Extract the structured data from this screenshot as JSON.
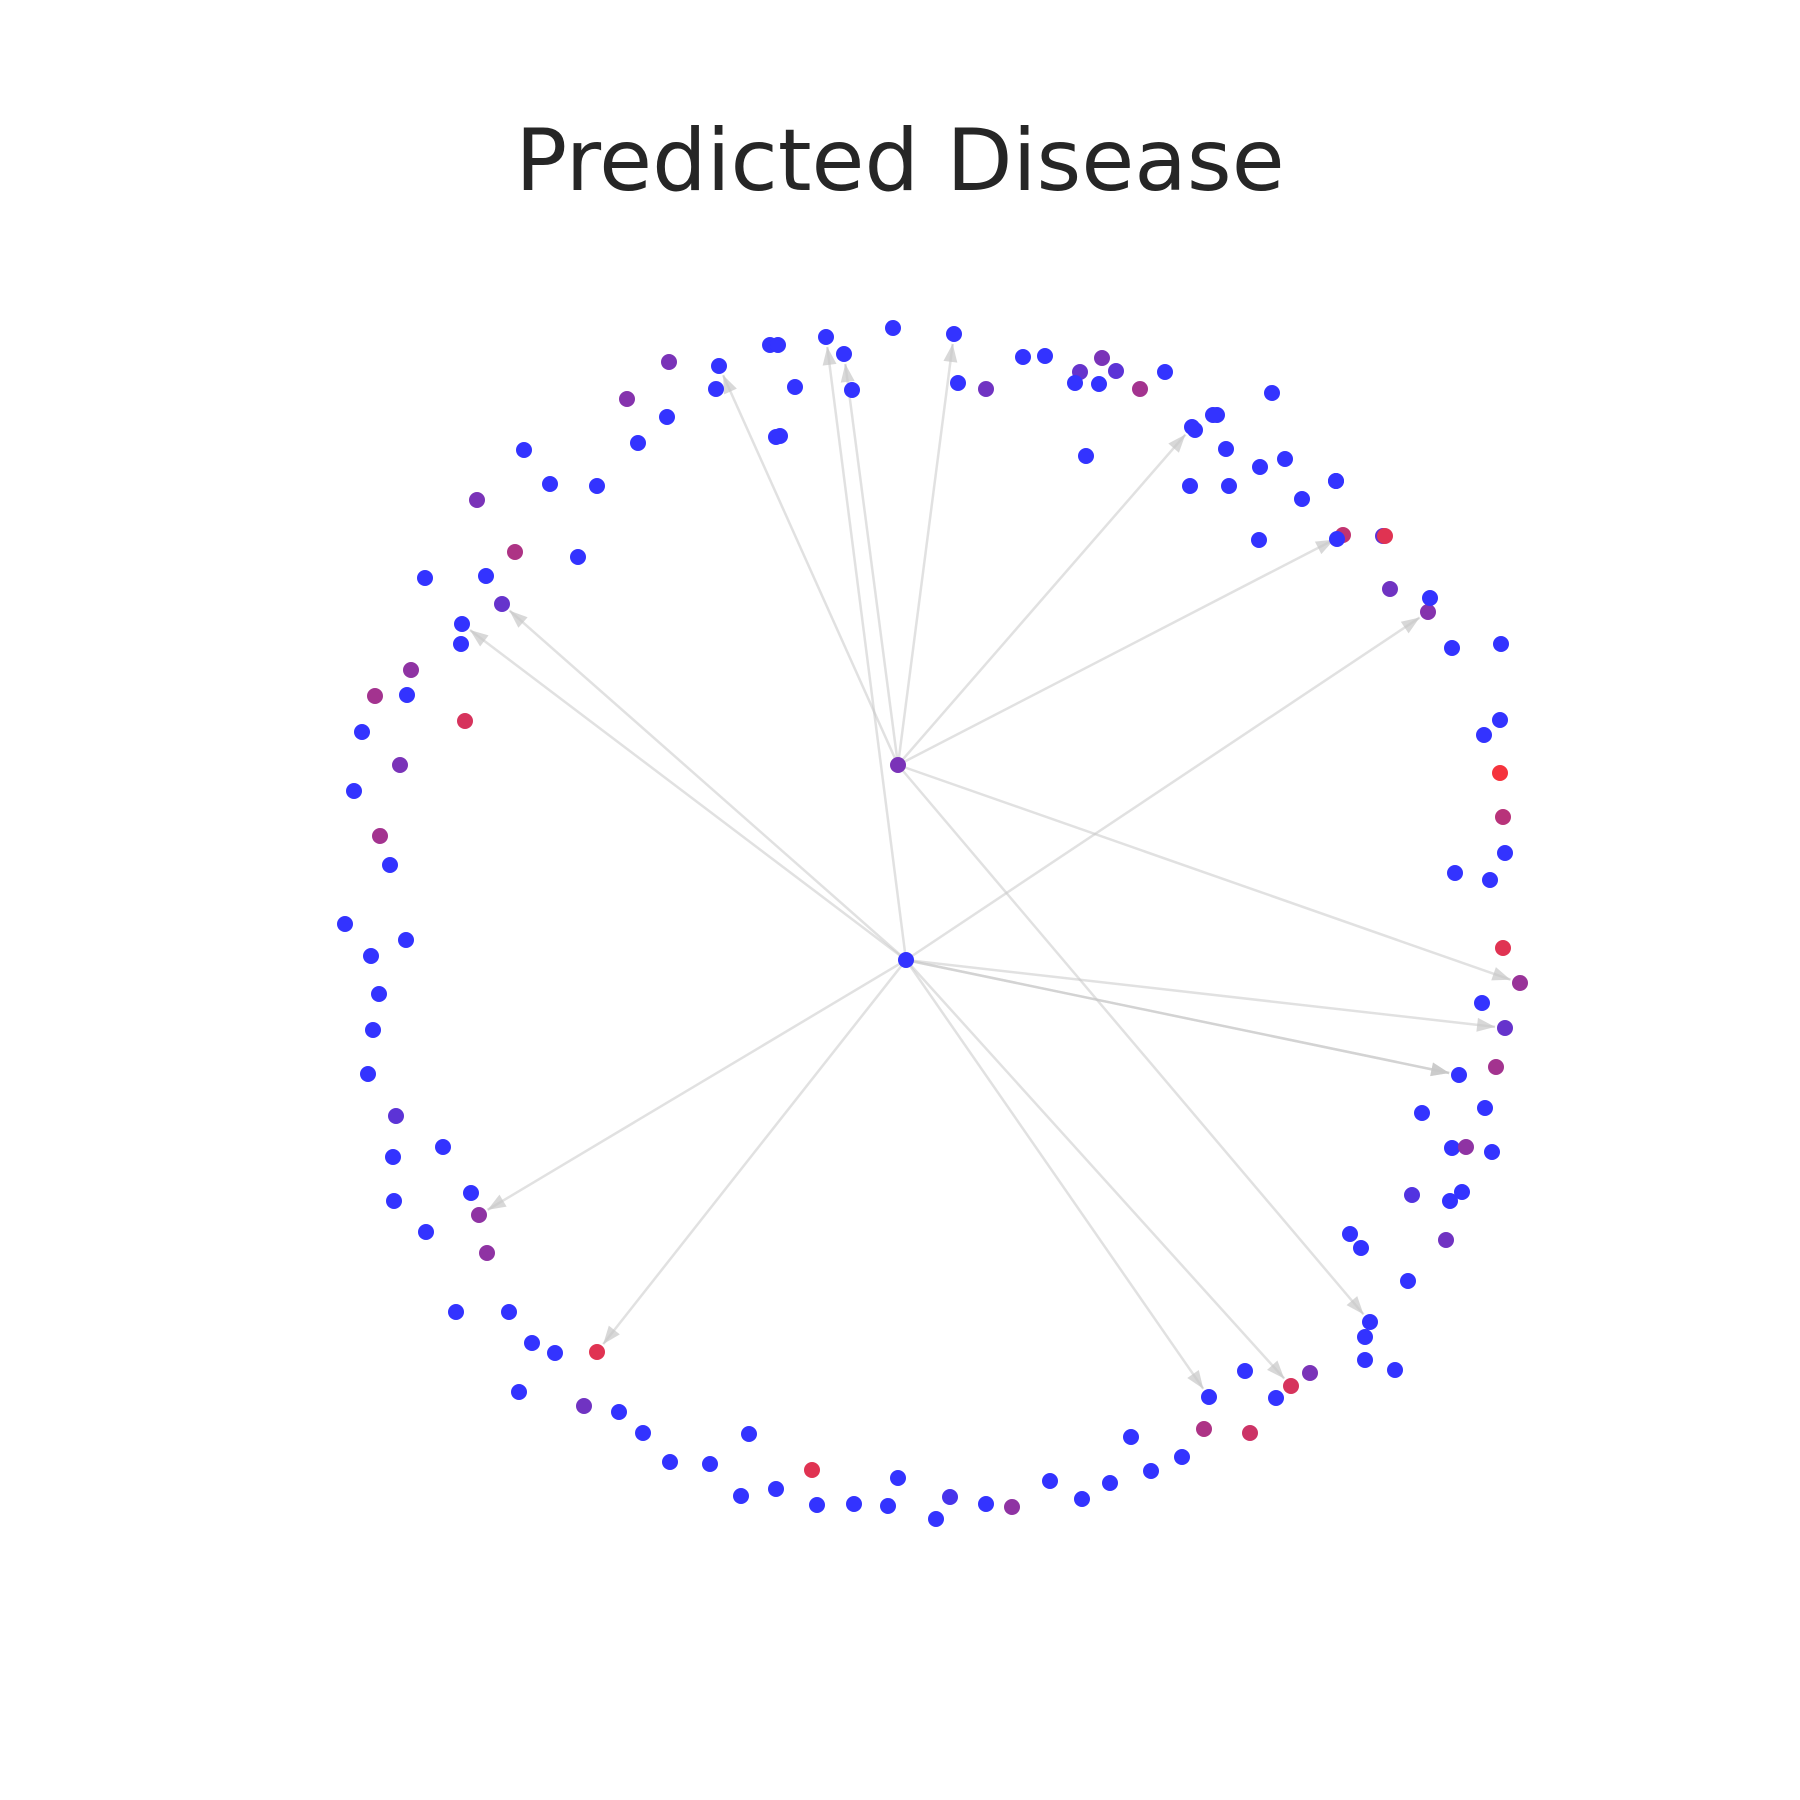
{
  "chart_data": {
    "type": "network",
    "title": "Predicted Disease",
    "color_scale": {
      "low": "#3333ff",
      "high": "#ff3333",
      "description": "node color by predicted disease score"
    },
    "nodes": [
      {
        "id": "n1",
        "s": 0.0
      },
      {
        "id": "n2",
        "s": 0.0
      },
      {
        "id": "n3",
        "s": 0.0
      },
      {
        "id": "n4",
        "s": 0.0
      },
      {
        "id": "n5",
        "s": 0.0
      },
      {
        "id": "n6",
        "s": 0.0
      },
      {
        "id": "n7",
        "s": 0.0
      },
      {
        "id": "n8",
        "s": 0.0
      },
      {
        "id": "n9",
        "s": 0.25
      },
      {
        "id": "n10",
        "s": 0.35
      },
      {
        "id": "n11",
        "s": 0.55
      },
      {
        "id": "n12",
        "s": 0.0
      },
      {
        "id": "n13",
        "s": 0.0
      },
      {
        "id": "n14",
        "s": 0.0
      },
      {
        "id": "n15",
        "s": 0.0
      },
      {
        "id": "n16",
        "s": 0.3
      },
      {
        "id": "n17",
        "s": 0.0
      },
      {
        "id": "n18",
        "s": 0.0
      },
      {
        "id": "n19",
        "s": 0.0
      },
      {
        "id": "n20",
        "s": 0.0
      },
      {
        "id": "n21",
        "s": 0.0
      },
      {
        "id": "n22",
        "s": 0.0
      },
      {
        "id": "n23",
        "s": 0.7
      },
      {
        "id": "n24",
        "s": 0.0
      },
      {
        "id": "n25",
        "s": 0.2
      },
      {
        "id": "n26",
        "s": 0.4
      },
      {
        "id": "n27",
        "s": 0.3
      },
      {
        "id": "n28",
        "s": 0.0
      },
      {
        "id": "n29",
        "s": 0.0
      },
      {
        "id": "n30",
        "s": 0.0
      },
      {
        "id": "n31",
        "s": 0.0
      },
      {
        "id": "n32",
        "s": 0.0
      },
      {
        "id": "n33",
        "s": 0.65
      },
      {
        "id": "n34",
        "s": 0.0
      },
      {
        "id": "n35",
        "s": 0.95
      },
      {
        "id": "n36",
        "s": 0.0
      },
      {
        "id": "n37",
        "s": 0.0
      },
      {
        "id": "n38",
        "s": 0.5
      },
      {
        "id": "n39",
        "s": 0.85
      },
      {
        "id": "n40",
        "s": 0.25
      },
      {
        "id": "n41",
        "s": 0.0
      },
      {
        "id": "n42",
        "s": 0.0
      },
      {
        "id": "n43",
        "s": 0.55
      },
      {
        "id": "n44",
        "s": 0.0
      },
      {
        "id": "n45",
        "s": 0.0
      },
      {
        "id": "n46",
        "s": 0.15
      },
      {
        "id": "n47",
        "s": 0.0
      },
      {
        "id": "n48",
        "s": 0.45
      },
      {
        "id": "n49",
        "s": 0.3
      },
      {
        "id": "n50",
        "s": 0.0
      },
      {
        "id": "n51",
        "s": 0.0
      },
      {
        "id": "n52",
        "s": 0.0
      },
      {
        "id": "n53",
        "s": 0.0
      },
      {
        "id": "n54",
        "s": 0.0
      },
      {
        "id": "n55",
        "s": 0.35
      },
      {
        "id": "n56",
        "s": 0.0
      },
      {
        "id": "n57",
        "s": 0.8
      },
      {
        "id": "n58",
        "s": 0.0
      },
      {
        "id": "n59",
        "s": 0.75
      },
      {
        "id": "n60",
        "s": 0.0
      },
      {
        "id": "n61",
        "s": 0.6
      },
      {
        "id": "n62",
        "s": 0.0
      },
      {
        "id": "n63",
        "s": 0.0
      },
      {
        "id": "n64",
        "s": 0.0
      },
      {
        "id": "n65",
        "s": 0.0
      },
      {
        "id": "n66",
        "s": 0.0
      },
      {
        "id": "n67",
        "s": 0.0
      },
      {
        "id": "n68",
        "s": 0.45
      },
      {
        "id": "n69",
        "s": 0.0
      },
      {
        "id": "n70",
        "s": 0.1
      },
      {
        "id": "n71",
        "s": 0.0
      },
      {
        "id": "n72",
        "s": 0.0
      },
      {
        "id": "n73",
        "s": 0.0
      },
      {
        "id": "n74",
        "s": 0.0
      },
      {
        "id": "n75",
        "s": 0.85
      },
      {
        "id": "n76",
        "s": 0.0
      },
      {
        "id": "n77",
        "s": 0.0
      },
      {
        "id": "n78",
        "s": 0.0
      },
      {
        "id": "n79",
        "s": 0.0
      },
      {
        "id": "n80",
        "s": 0.35
      },
      {
        "id": "n81",
        "s": 0.0
      },
      {
        "id": "n82",
        "s": 0.0
      },
      {
        "id": "n83",
        "s": 0.0
      },
      {
        "id": "n84",
        "s": 0.0
      },
      {
        "id": "n85",
        "s": 0.0
      },
      {
        "id": "n86",
        "s": 0.85
      },
      {
        "id": "n87",
        "s": 0.3
      },
      {
        "id": "n88",
        "s": 0.0
      },
      {
        "id": "n89",
        "s": 0.0
      },
      {
        "id": "n90",
        "s": 0.0
      },
      {
        "id": "n91",
        "s": 0.0
      },
      {
        "id": "n92",
        "s": 0.0
      },
      {
        "id": "n93",
        "s": 0.45
      },
      {
        "id": "n94",
        "s": 0.45
      },
      {
        "id": "n95",
        "s": 0.0
      },
      {
        "id": "n96",
        "s": 0.0
      },
      {
        "id": "n97",
        "s": 0.0
      },
      {
        "id": "n98",
        "s": 0.0
      },
      {
        "id": "n99",
        "s": 0.0
      },
      {
        "id": "n100",
        "s": 0.2
      },
      {
        "id": "n101",
        "s": 0.0
      },
      {
        "id": "n102",
        "s": 0.0
      },
      {
        "id": "n103",
        "s": 0.0
      },
      {
        "id": "n104",
        "s": 0.0
      },
      {
        "id": "n105",
        "s": 0.0
      },
      {
        "id": "n106",
        "s": 0.0
      },
      {
        "id": "n107",
        "s": 0.0
      },
      {
        "id": "n108",
        "s": 0.55
      },
      {
        "id": "n109",
        "s": 0.0
      },
      {
        "id": "n110",
        "s": 0.35
      },
      {
        "id": "n111",
        "s": 0.0
      },
      {
        "id": "n112",
        "s": 0.0
      },
      {
        "id": "n113",
        "s": 0.55
      },
      {
        "id": "n114",
        "s": 0.45
      },
      {
        "id": "n115",
        "s": 0.0
      },
      {
        "id": "n116",
        "s": 0.8
      },
      {
        "id": "n117",
        "s": 0.0
      },
      {
        "id": "n118",
        "s": 0.0
      },
      {
        "id": "n119",
        "s": 0.0
      },
      {
        "id": "n120",
        "s": 0.25
      },
      {
        "id": "n121",
        "s": 0.0
      },
      {
        "id": "n122",
        "s": 0.35
      },
      {
        "id": "n123",
        "s": 0.0
      },
      {
        "id": "n124",
        "s": 0.6
      },
      {
        "id": "n125",
        "s": 0.0
      },
      {
        "id": "n126",
        "s": 0.0
      },
      {
        "id": "n127",
        "s": 0.4
      },
      {
        "id": "n128",
        "s": 0.0
      },
      {
        "id": "n129",
        "s": 0.35
      },
      {
        "id": "n130",
        "s": 0.0
      },
      {
        "id": "n131",
        "s": 0.0
      },
      {
        "id": "n132",
        "s": 0.0
      },
      {
        "id": "n133",
        "s": 0.0
      },
      {
        "id": "n134",
        "s": 0.0
      },
      {
        "id": "n135",
        "s": 0.0
      },
      {
        "id": "n136",
        "s": 0.0
      },
      {
        "id": "n137",
        "s": 0.0
      },
      {
        "id": "n138",
        "s": 0.0
      },
      {
        "id": "n139",
        "s": 0.2
      },
      {
        "id": "n140",
        "s": 0.0
      },
      {
        "id": "n141",
        "s": 0.0
      },
      {
        "id": "n142",
        "s": 0.0
      },
      {
        "id": "n143",
        "s": 0.0
      },
      {
        "id": "n144",
        "s": 0.85
      },
      {
        "id": "n145",
        "s": 0.0
      },
      {
        "id": "n146",
        "s": 0.0
      },
      {
        "id": "n147",
        "s": 0.0
      },
      {
        "id": "n148",
        "s": 0.0
      },
      {
        "id": "n149",
        "s": 0.0
      },
      {
        "id": "n150",
        "s": 0.0
      },
      {
        "id": "n151",
        "s": 0.0
      },
      {
        "id": "n152",
        "s": 0.0
      }
    ],
    "edges": [
      [
        "n80",
        "n3"
      ],
      [
        "n80",
        "n6"
      ],
      [
        "n80",
        "n20"
      ],
      [
        "n80",
        "n131"
      ],
      [
        "n80",
        "n38"
      ],
      [
        "n80",
        "n53"
      ],
      [
        "n80",
        "n23"
      ],
      [
        "n81",
        "n42"
      ],
      [
        "n81",
        "n42"
      ],
      [
        "n81",
        "n40"
      ],
      [
        "n81",
        "n60"
      ],
      [
        "n81",
        "n2"
      ],
      [
        "n81",
        "n94"
      ],
      [
        "n81",
        "n119"
      ],
      [
        "n81",
        "n86"
      ],
      [
        "n81",
        "n57"
      ],
      [
        "n81",
        "n120"
      ],
      [
        "n81",
        "n26"
      ]
    ]
  }
}
